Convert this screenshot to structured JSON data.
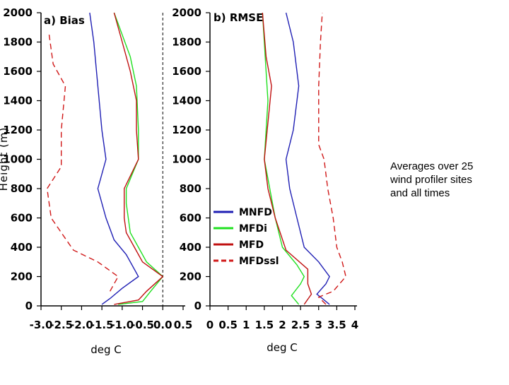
{
  "note": [
    "Averages over 25",
    "wind profiler sites",
    "and all times"
  ],
  "colors": {
    "MNFD": "#1f1fb4",
    "MFDi": "#20e020",
    "MFD": "#c01010",
    "MFDssl": "#d01818"
  },
  "chart_data": [
    {
      "type": "line",
      "title": "a) Bias",
      "xlabel": "deg C",
      "ylabel": "Height (m)",
      "xlim": [
        -3.0,
        0.5
      ],
      "ylim": [
        0,
        2000
      ],
      "xticks": [
        "-3.0",
        "-2.5",
        "-2.0",
        "-1.5",
        "-1.0",
        "-0.5",
        "0.0",
        "0.5"
      ],
      "yticks": [
        "0",
        "200",
        "400",
        "600",
        "800",
        "1000",
        "1200",
        "1400",
        "1600",
        "1800",
        "2000"
      ],
      "reference_line_x": 0.0,
      "series": [
        {
          "name": "MNFD",
          "style": "solid",
          "color_key": "MNFD",
          "points": [
            [
              -1.5,
              10
            ],
            [
              -1.3,
              50
            ],
            [
              -1.0,
              120
            ],
            [
              -0.6,
              200
            ],
            [
              -0.9,
              350
            ],
            [
              -1.2,
              450
            ],
            [
              -1.4,
              600
            ],
            [
              -1.6,
              800
            ],
            [
              -1.4,
              1000
            ],
            [
              -1.5,
              1200
            ],
            [
              -1.6,
              1500
            ],
            [
              -1.7,
              1800
            ],
            [
              -1.8,
              2000
            ]
          ]
        },
        {
          "name": "MFDi",
          "style": "solid",
          "color_key": "MFDi",
          "points": [
            [
              -1.1,
              10
            ],
            [
              -0.5,
              30
            ],
            [
              -0.3,
              100
            ],
            [
              0.0,
              200
            ],
            [
              -0.4,
              300
            ],
            [
              -0.6,
              400
            ],
            [
              -0.8,
              500
            ],
            [
              -0.9,
              700
            ],
            [
              -0.9,
              800
            ],
            [
              -0.6,
              1000
            ],
            [
              -0.6,
              1200
            ],
            [
              -0.65,
              1500
            ],
            [
              -0.8,
              1700
            ],
            [
              -1.2,
              2000
            ]
          ]
        },
        {
          "name": "MFD",
          "style": "solid",
          "color_key": "MFD",
          "points": [
            [
              -1.2,
              10
            ],
            [
              -0.6,
              40
            ],
            [
              -0.4,
              100
            ],
            [
              0.0,
              200
            ],
            [
              -0.5,
              300
            ],
            [
              -0.7,
              400
            ],
            [
              -0.9,
              500
            ],
            [
              -0.95,
              600
            ],
            [
              -0.95,
              800
            ],
            [
              -0.6,
              1000
            ],
            [
              -0.65,
              1200
            ],
            [
              -0.65,
              1400
            ],
            [
              -0.8,
              1600
            ],
            [
              -1.0,
              1800
            ],
            [
              -1.2,
              2000
            ]
          ]
        },
        {
          "name": "MFDssl",
          "style": "dashed",
          "color_key": "MFDssl",
          "points": [
            [
              -1.3,
              100
            ],
            [
              -1.1,
              200
            ],
            [
              -1.6,
              300
            ],
            [
              -2.2,
              380
            ],
            [
              -2.5,
              500
            ],
            [
              -2.75,
              600
            ],
            [
              -2.85,
              800
            ],
            [
              -2.5,
              950
            ],
            [
              -2.5,
              1200
            ],
            [
              -2.4,
              1500
            ],
            [
              -2.7,
              1650
            ],
            [
              -2.8,
              1850
            ]
          ]
        }
      ]
    },
    {
      "type": "line",
      "title": "b) RMSE",
      "xlabel": "deg C",
      "ylabel": "",
      "xlim": [
        0,
        4
      ],
      "ylim": [
        0,
        2000
      ],
      "xticks": [
        "0",
        "0.5",
        "1",
        "1.5",
        "2",
        "2.5",
        "3",
        "3.5",
        "4"
      ],
      "yticks": [
        "0",
        "200",
        "400",
        "600",
        "800",
        "1000",
        "1200",
        "1400",
        "1600",
        "1800",
        "2000"
      ],
      "legend": {
        "placement": "lower-left",
        "entries": [
          "MNFD",
          "MFDi",
          "MFD",
          "MFDssl"
        ]
      },
      "series": [
        {
          "name": "MNFD",
          "style": "solid",
          "color_key": "MNFD",
          "points": [
            [
              3.3,
              10
            ],
            [
              3.1,
              50
            ],
            [
              2.95,
              80
            ],
            [
              3.2,
              150
            ],
            [
              3.3,
              200
            ],
            [
              3.0,
              300
            ],
            [
              2.6,
              400
            ],
            [
              2.4,
              600
            ],
            [
              2.2,
              800
            ],
            [
              2.1,
              1000
            ],
            [
              2.3,
              1200
            ],
            [
              2.45,
              1500
            ],
            [
              2.3,
              1800
            ],
            [
              2.1,
              2000
            ]
          ]
        },
        {
          "name": "MFDi",
          "style": "solid",
          "color_key": "MFDi",
          "points": [
            [
              2.45,
              10
            ],
            [
              2.25,
              70
            ],
            [
              2.5,
              150
            ],
            [
              2.6,
              200
            ],
            [
              2.4,
              280
            ],
            [
              2.0,
              400
            ],
            [
              1.8,
              600
            ],
            [
              1.5,
              1000
            ],
            [
              1.6,
              1400
            ],
            [
              1.55,
              1600
            ],
            [
              1.45,
              2000
            ]
          ]
        },
        {
          "name": "MFD",
          "style": "solid",
          "color_key": "MFD",
          "points": [
            [
              2.6,
              10
            ],
            [
              2.8,
              80
            ],
            [
              2.7,
              150
            ],
            [
              2.7,
              250
            ],
            [
              2.1,
              380
            ],
            [
              1.8,
              600
            ],
            [
              1.6,
              800
            ],
            [
              1.5,
              1000
            ],
            [
              1.7,
              1500
            ],
            [
              1.55,
              1700
            ],
            [
              1.45,
              2000
            ]
          ]
        },
        {
          "name": "MFDssl",
          "style": "dashed",
          "color_key": "MFDssl",
          "points": [
            [
              3.2,
              10
            ],
            [
              3.0,
              60
            ],
            [
              3.4,
              100
            ],
            [
              3.75,
              200
            ],
            [
              3.65,
              300
            ],
            [
              3.5,
              400
            ],
            [
              3.4,
              600
            ],
            [
              3.25,
              800
            ],
            [
              3.15,
              1000
            ],
            [
              3.0,
              1100
            ],
            [
              3.0,
              1500
            ],
            [
              3.05,
              1800
            ],
            [
              3.1,
              2000
            ]
          ]
        }
      ]
    }
  ]
}
